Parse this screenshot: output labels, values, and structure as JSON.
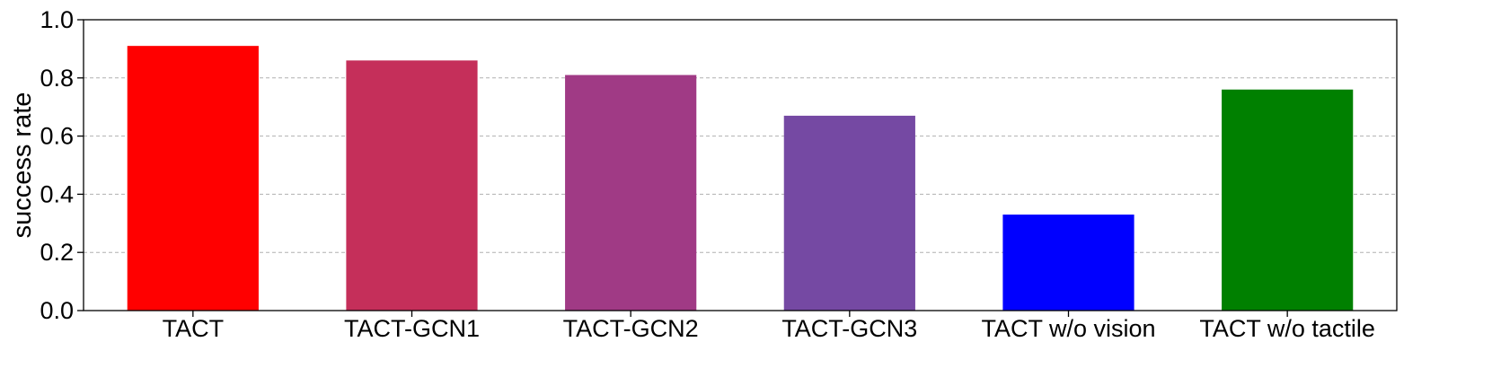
{
  "chart_data": {
    "type": "bar",
    "title": "",
    "xlabel": "",
    "ylabel": "success rate",
    "categories": [
      "TACT",
      "TACT-GCN1",
      "TACT-GCN2",
      "TACT-GCN3",
      "TACT w/o vision",
      "TACT w/o tactile"
    ],
    "values": [
      0.91,
      0.86,
      0.81,
      0.67,
      0.33,
      0.76
    ],
    "colors": [
      "#ff0000",
      "#c52f5a",
      "#a03a85",
      "#7549a3",
      "#0000ff",
      "#008000"
    ],
    "ylim": [
      0.0,
      1.0
    ],
    "yticks": [
      "0.0",
      "0.2",
      "0.4",
      "0.6",
      "0.8",
      "1.0"
    ],
    "grid": "y-dashed",
    "legend": "none"
  }
}
